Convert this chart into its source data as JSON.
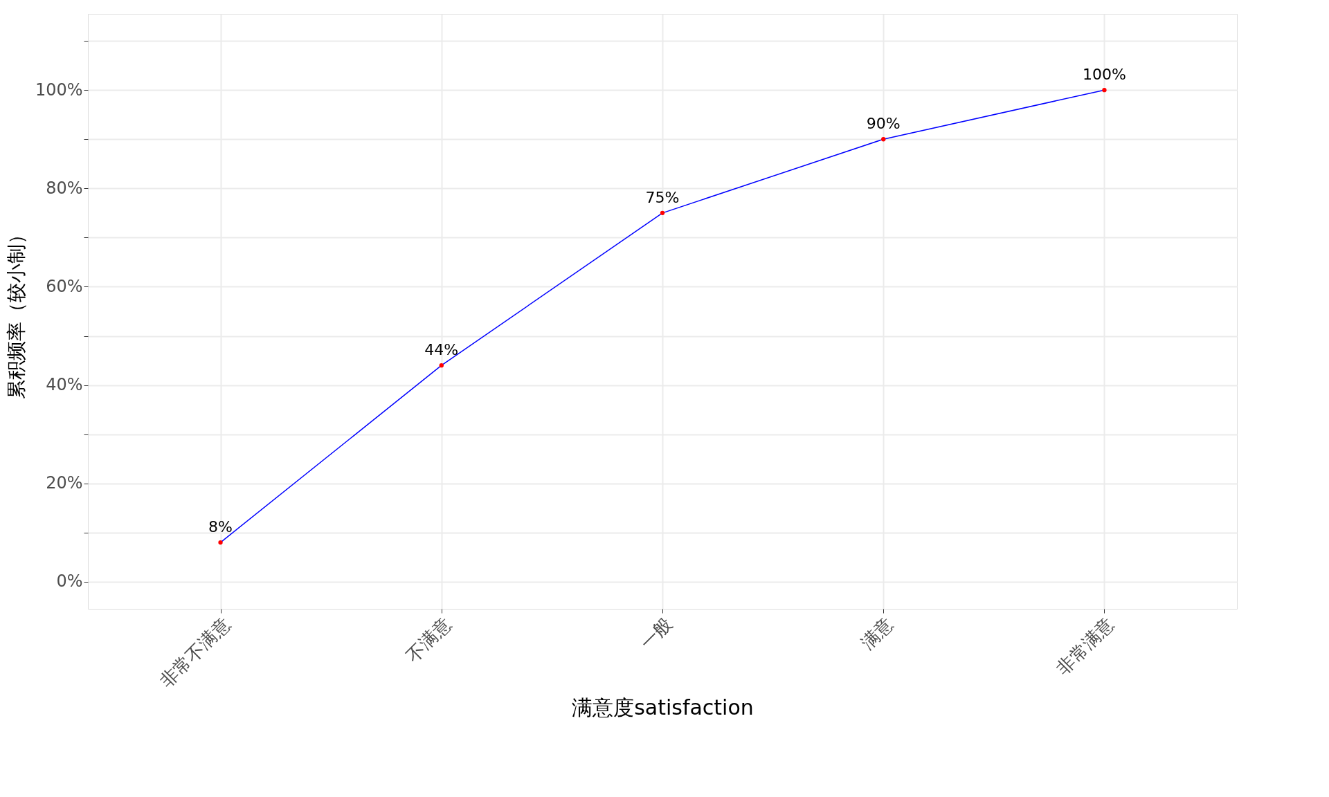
{
  "chart_data": {
    "type": "line",
    "xlabel": "满意度satisfaction",
    "ylabel": "累积频率（较小制）",
    "categories": [
      "非常不满意",
      "不满意",
      "一般",
      "满意",
      "非常满意"
    ],
    "series": [
      {
        "color": "#0000ff",
        "values": [
          8,
          44,
          75,
          90,
          100
        ],
        "marker": "none"
      },
      {
        "type": "scatter",
        "color": "#ff0000",
        "values": [
          8,
          44,
          75,
          90,
          100
        ],
        "marker": "circle",
        "value_labels": [
          "8%",
          "44%",
          "75%",
          "90%",
          "100%"
        ]
      }
    ],
    "ylim": [
      -5.5,
      115.5
    ],
    "yticks": [
      {
        "value": 0,
        "label": "0%"
      },
      {
        "value": 10,
        "label": null
      },
      {
        "value": 20,
        "label": "20%"
      },
      {
        "value": 30,
        "label": null
      },
      {
        "value": 40,
        "label": "40%"
      },
      {
        "value": 50,
        "label": null
      },
      {
        "value": 60,
        "label": "60%"
      },
      {
        "value": 70,
        "label": null
      },
      {
        "value": 80,
        "label": "80%"
      },
      {
        "value": 90,
        "label": null
      },
      {
        "value": 100,
        "label": "100%"
      },
      {
        "value": 110,
        "label": null
      }
    ],
    "grid": true
  }
}
